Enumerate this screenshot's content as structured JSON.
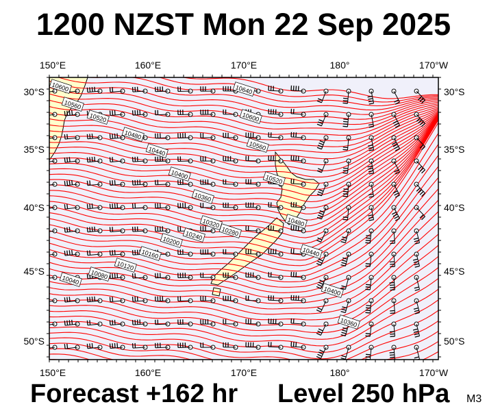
{
  "header": {
    "title": "1200 NZST Mon 22 Sep 2025"
  },
  "footer": {
    "forecast": "Forecast +162 hr",
    "level": "Level 250 hPa",
    "model": "M3"
  },
  "map": {
    "lon_labels": [
      "150°E",
      "160°E",
      "170°E",
      "180°",
      "170°W"
    ],
    "lat_labels": [
      "30°S",
      "35°S",
      "40°S",
      "45°S",
      "50°S"
    ],
    "contour_labels": [
      "10600",
      "10560",
      "10520",
      "10480",
      "10440",
      "10400",
      "10360",
      "10320",
      "10280",
      "10240",
      "10200",
      "10160",
      "10120",
      "10080",
      "10040",
      "10640",
      "10600",
      "10560",
      "10520",
      "10480",
      "10440",
      "10400",
      "10360"
    ],
    "colors": {
      "contour": "#ff0000",
      "land": "#ffffcc",
      "plot_bg": "#f0f0fa",
      "barb": "#000000"
    }
  }
}
